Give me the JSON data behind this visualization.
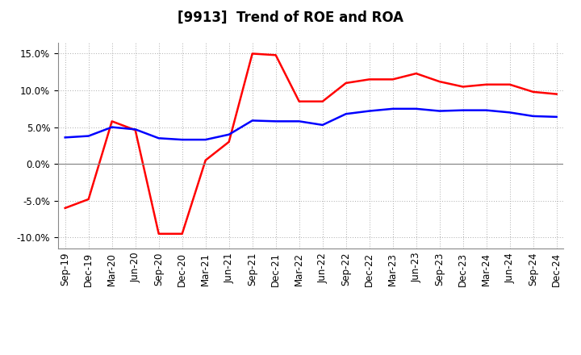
{
  "title": "[9913]  Trend of ROE and ROA",
  "x_labels": [
    "Sep-19",
    "Dec-19",
    "Mar-20",
    "Jun-20",
    "Sep-20",
    "Dec-20",
    "Mar-21",
    "Jun-21",
    "Sep-21",
    "Dec-21",
    "Mar-22",
    "Jun-22",
    "Sep-22",
    "Dec-22",
    "Mar-23",
    "Jun-23",
    "Sep-23",
    "Dec-23",
    "Mar-24",
    "Jun-24",
    "Sep-24",
    "Dec-24"
  ],
  "roe": [
    -6.0,
    -4.8,
    5.8,
    4.6,
    -9.5,
    -9.5,
    0.5,
    3.0,
    15.0,
    14.8,
    8.5,
    8.5,
    11.0,
    11.5,
    11.5,
    12.3,
    11.2,
    10.5,
    10.8,
    10.8,
    9.8,
    9.5
  ],
  "roa": [
    3.6,
    3.8,
    5.0,
    4.7,
    3.5,
    3.3,
    3.3,
    4.0,
    5.9,
    5.8,
    5.8,
    5.3,
    6.8,
    7.2,
    7.5,
    7.5,
    7.2,
    7.3,
    7.3,
    7.0,
    6.5,
    6.4
  ],
  "roe_color": "#FF0000",
  "roa_color": "#0000FF",
  "background_color": "#FFFFFF",
  "plot_bg_color": "#FFFFFF",
  "ylim": [
    -11.5,
    16.5
  ],
  "yticks": [
    -10.0,
    -5.0,
    0.0,
    5.0,
    10.0,
    15.0
  ],
  "grid_color": "#AAAAAA",
  "line_width": 1.8,
  "title_fontsize": 12,
  "legend_fontsize": 10,
  "tick_fontsize": 8.5
}
